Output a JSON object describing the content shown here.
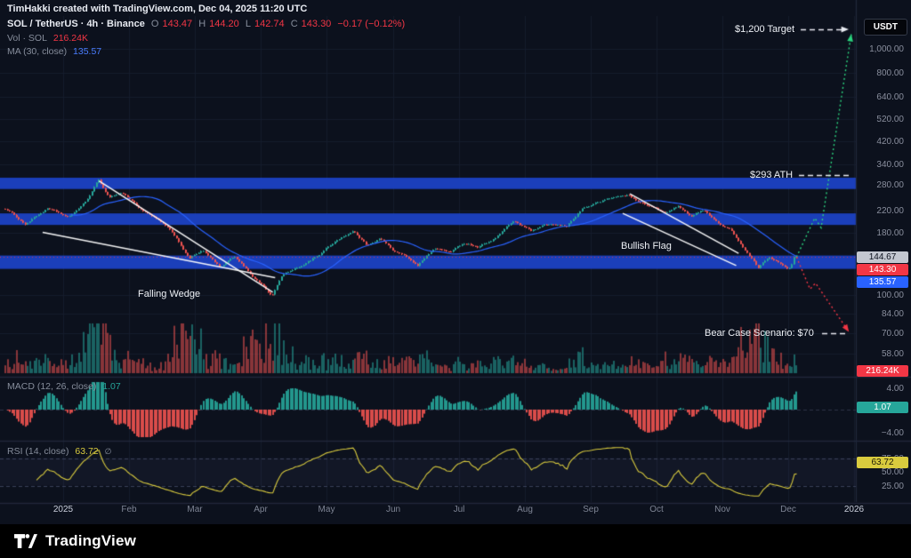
{
  "header": {
    "attribution": "TimHakki created with TradingView.com, Dec 04, 2025 11:20 UTC",
    "symbol": "SOL / TetherUS · 4h · Binance",
    "ohlc": {
      "o_label": "O",
      "o": "143.47",
      "h_label": "H",
      "h": "144.20",
      "l_label": "L",
      "l": "142.74",
      "c_label": "C",
      "c": "143.30",
      "change": "−0.17 (−0.12%)"
    },
    "volume_label": "Vol · SOL",
    "volume_value": "216.24K",
    "ma_label": "MA (30, close)",
    "ma_value": "135.57",
    "currency_button": "USDT"
  },
  "panes": {
    "macd": {
      "label": "MACD (12, 26, close)",
      "value": "1.07",
      "ticks": [
        {
          "label": "4.00",
          "offset": -24
        },
        {
          "label": "−4.00",
          "offset": 26
        }
      ]
    },
    "rsi": {
      "label": "RSI (14, close)",
      "value": "63.72",
      "extra_icon": "∅",
      "ticks": [
        {
          "label": "75.00",
          "v": 75
        },
        {
          "label": "50.00",
          "v": 50
        },
        {
          "label": "25.00",
          "v": 25
        }
      ]
    }
  },
  "annotations": {
    "target": "$1,200 Target",
    "ath": "$293 ATH",
    "bear": "Bear Case Scenario: $70",
    "wedge": "Falling Wedge",
    "flag": "Bullish Flag"
  },
  "axes": {
    "price_ticks": [
      {
        "label": "1,000.00",
        "p": 1000
      },
      {
        "label": "800.00",
        "p": 800
      },
      {
        "label": "640.00",
        "p": 640
      },
      {
        "label": "520.00",
        "p": 520
      },
      {
        "label": "420.00",
        "p": 420
      },
      {
        "label": "340.00",
        "p": 340
      },
      {
        "label": "280.00",
        "p": 280
      },
      {
        "label": "220.00",
        "p": 220
      },
      {
        "label": "180.00",
        "p": 180
      },
      {
        "label": "100.00",
        "p": 100
      },
      {
        "label": "84.00",
        "p": 84
      },
      {
        "label": "70.00",
        "p": 70
      },
      {
        "label": "58.00",
        "p": 58
      }
    ],
    "time_ticks": [
      "2025",
      "Feb",
      "Mar",
      "Apr",
      "May",
      "Jun",
      "Jul",
      "Aug",
      "Sep",
      "Oct",
      "Nov",
      "Dec",
      "2026"
    ],
    "badges": {
      "bar_high": "144.67",
      "last_price": "143.30",
      "ma": "135.57",
      "volume": "216.24K",
      "macd": "1.07",
      "rsi": "63.72"
    }
  },
  "footer": {
    "brand": "TradingView"
  },
  "chart_data": {
    "type": "candlestick",
    "title": "SOL / TetherUS · 4h · Binance",
    "scale": "log",
    "ylim": [
      58,
      1000
    ],
    "y_ticks": [
      1000,
      800,
      640,
      520,
      420,
      340,
      280,
      220,
      180,
      100,
      84,
      70,
      58
    ],
    "x_categories": [
      "Jan 2025",
      "Feb",
      "Mar",
      "Apr",
      "May",
      "Jun",
      "Jul",
      "Aug",
      "Sep",
      "Oct",
      "Nov",
      "Dec"
    ],
    "last_bar": {
      "open": 143.47,
      "high": 144.2,
      "low": 142.74,
      "close": 143.3,
      "change": -0.17,
      "change_pct": -0.12,
      "volume": "216.24K"
    },
    "indicators": {
      "ma30": 135.57,
      "macd_12_26_9_hist": 1.07,
      "rsi14": 63.72
    },
    "price_path": [
      [
        0,
        225
      ],
      [
        0.025,
        195
      ],
      [
        0.053,
        225
      ],
      [
        0.081,
        205
      ],
      [
        0.103,
        240
      ],
      [
        0.118,
        291
      ],
      [
        0.131,
        250
      ],
      [
        0.148,
        262
      ],
      [
        0.171,
        225
      ],
      [
        0.199,
        195
      ],
      [
        0.216,
        170
      ],
      [
        0.233,
        140
      ],
      [
        0.249,
        152
      ],
      [
        0.272,
        128
      ],
      [
        0.289,
        142
      ],
      [
        0.311,
        120
      ],
      [
        0.328,
        108
      ],
      [
        0.337,
        99
      ],
      [
        0.351,
        122
      ],
      [
        0.373,
        130
      ],
      [
        0.399,
        148
      ],
      [
        0.424,
        172
      ],
      [
        0.44,
        183
      ],
      [
        0.457,
        160
      ],
      [
        0.474,
        172
      ],
      [
        0.491,
        152
      ],
      [
        0.508,
        142
      ],
      [
        0.521,
        133
      ],
      [
        0.542,
        155
      ],
      [
        0.564,
        150
      ],
      [
        0.581,
        163
      ],
      [
        0.598,
        158
      ],
      [
        0.62,
        172
      ],
      [
        0.643,
        200
      ],
      [
        0.665,
        182
      ],
      [
        0.688,
        192
      ],
      [
        0.71,
        188
      ],
      [
        0.73,
        225
      ],
      [
        0.749,
        238
      ],
      [
        0.772,
        250
      ],
      [
        0.787,
        255
      ],
      [
        0.8,
        238
      ],
      [
        0.817,
        230
      ],
      [
        0.834,
        215
      ],
      [
        0.851,
        228
      ],
      [
        0.867,
        210
      ],
      [
        0.884,
        222
      ],
      [
        0.903,
        195
      ],
      [
        0.918,
        183
      ],
      [
        0.935,
        152
      ],
      [
        0.952,
        128
      ],
      [
        0.966,
        142
      ],
      [
        0.98,
        136
      ],
      [
        0.991,
        130
      ],
      [
        1,
        143.3
      ]
    ],
    "bands": [
      {
        "low": 270,
        "high": 300
      },
      {
        "low": 193,
        "high": 215
      },
      {
        "low": 128,
        "high": 145
      }
    ],
    "trendlines": {
      "falling_wedge": [
        [
          [
            0.118,
            291
          ],
          [
            0.337,
            103
          ]
        ],
        [
          [
            0.047,
            180
          ],
          [
            0.34,
            118
          ]
        ]
      ],
      "bull_flag": [
        [
          [
            0.787,
            258
          ],
          [
            0.924,
            148
          ]
        ],
        [
          [
            0.778,
            215
          ],
          [
            0.921,
            132
          ]
        ]
      ]
    },
    "projections": {
      "bull_path": [
        [
          0.997,
          143
        ],
        [
          1.02,
          206
        ],
        [
          1.028,
          188
        ],
        [
          1.066,
          1150
        ]
      ],
      "bear_path": [
        [
          0.997,
          143
        ],
        [
          1.014,
          106
        ],
        [
          1.021,
          112
        ],
        [
          1.063,
          71
        ]
      ]
    },
    "levels": {
      "target": 1200,
      "ath": 293,
      "bear_case": 70
    },
    "num_candles": 356,
    "colors": {
      "up": "#26a69a",
      "down": "#ef5350",
      "band": "#1e46d0",
      "ma": "#2962ff",
      "rsi_line": "#d9cb3e",
      "proj_up": "#2bd47e",
      "proj_down": "#f23645",
      "last_price": "#f23645"
    }
  }
}
